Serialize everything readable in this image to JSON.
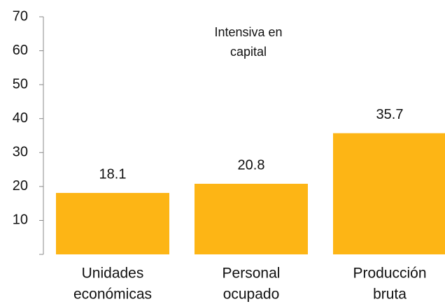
{
  "chart_data": {
    "type": "bar",
    "annotation": [
      "Intensiva en",
      "capital"
    ],
    "categories": [
      [
        "Unidades",
        "económicas"
      ],
      [
        "Personal",
        "ocupado"
      ],
      [
        "Producción",
        "bruta"
      ]
    ],
    "values": [
      18.1,
      20.8,
      35.7
    ],
    "color": "#fdb515",
    "ylim": [
      0,
      70
    ],
    "yticks": [
      10,
      20,
      30,
      40,
      50,
      60,
      70
    ],
    "grid": false
  }
}
